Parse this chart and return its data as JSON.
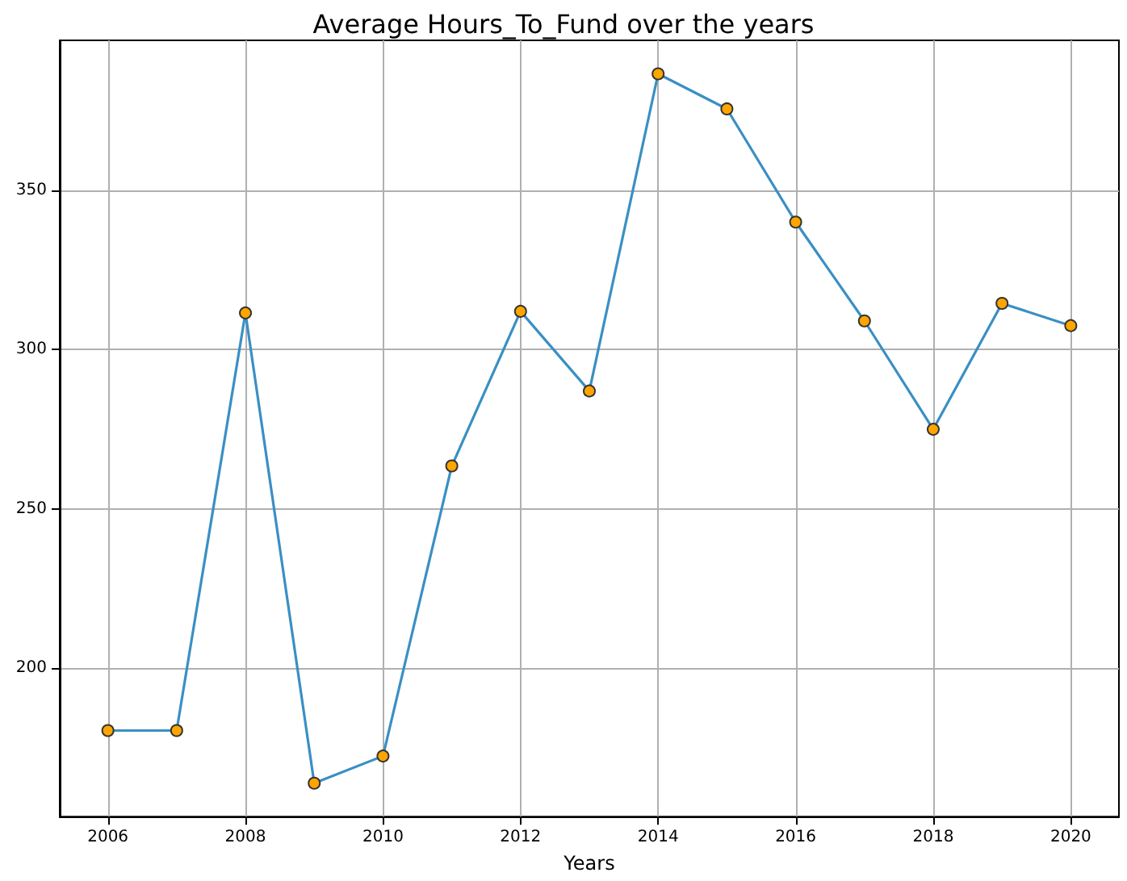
{
  "chart_data": {
    "type": "line",
    "title": "Average Hours_To_Fund over the years",
    "xlabel": "Years",
    "x": [
      2006,
      2007,
      2008,
      2009,
      2010,
      2011,
      2012,
      2013,
      2014,
      2015,
      2016,
      2017,
      2018,
      2019,
      2020
    ],
    "series": [
      {
        "color": "#3a8fc4",
        "colors": [
          "#ffa500",
          "#ffa500",
          "#ffa500",
          "#ffa500",
          "#ffa500",
          "#ffa500",
          "#ffa500",
          "#ffa500",
          "#ffa500",
          "#ffa500",
          "#ffa500",
          "#ffa500",
          "#ffa500",
          "#ffa500",
          "#ffa500"
        ],
        "values": [
          180.5,
          180.5,
          311.5,
          164,
          172.5,
          263.5,
          312,
          287,
          386.5,
          375.5,
          340,
          309,
          275,
          314.5,
          307.5
        ]
      }
    ],
    "xlim": [
      2005.3,
      2020.7
    ],
    "xticks": [
      2006,
      2008,
      2010,
      2012,
      2014,
      2016,
      2018,
      2020
    ],
    "ylim": [
      153.5,
      397
    ],
    "yticks": [
      200,
      250,
      300,
      350
    ],
    "grid": true,
    "marker": "circle",
    "line_style": "solid"
  }
}
